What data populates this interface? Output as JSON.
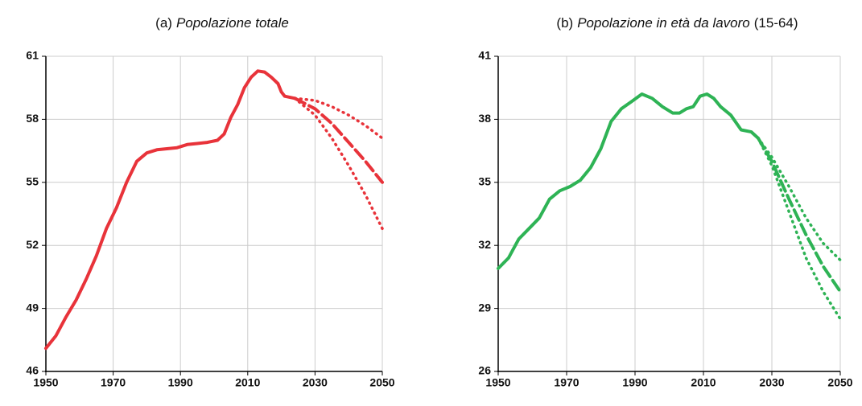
{
  "chart_data": [
    {
      "type": "line",
      "title": [
        "(a)",
        "Popolazione totale"
      ],
      "color": "#e8333a",
      "xlim": [
        1950,
        2050
      ],
      "xticks": [
        1950,
        1970,
        1990,
        2010,
        2030,
        2050
      ],
      "ylim": [
        46,
        61
      ],
      "yticks": [
        46,
        49,
        52,
        55,
        58,
        61
      ],
      "grid": true,
      "series": [
        {
          "style": "solid",
          "x": [
            1950,
            1953,
            1956,
            1959,
            1962,
            1965,
            1968,
            1971,
            1974,
            1977,
            1980,
            1983,
            1986,
            1989,
            1992,
            1995,
            1998,
            2001,
            2003,
            2005,
            2007,
            2009,
            2011,
            2013,
            2015,
            2017,
            2019,
            2020,
            2021,
            2024
          ],
          "values": [
            47.1,
            47.7,
            48.6,
            49.4,
            50.4,
            51.5,
            52.8,
            53.8,
            55.0,
            56.0,
            56.4,
            56.55,
            56.6,
            56.65,
            56.8,
            56.85,
            56.9,
            57.0,
            57.3,
            58.1,
            58.7,
            59.5,
            60.0,
            60.3,
            60.25,
            60.0,
            59.7,
            59.3,
            59.1,
            59.0
          ]
        },
        {
          "style": "dashed",
          "x": [
            2024,
            2030,
            2035,
            2040,
            2045,
            2050
          ],
          "values": [
            59.0,
            58.5,
            57.8,
            56.9,
            56.0,
            55.0
          ]
        },
        {
          "style": "dotted",
          "x": [
            2024,
            2030,
            2035,
            2040,
            2045,
            2050
          ],
          "values": [
            59.0,
            58.9,
            58.6,
            58.2,
            57.7,
            57.1
          ]
        },
        {
          "style": "dotted",
          "x": [
            2024,
            2030,
            2035,
            2040,
            2045,
            2050
          ],
          "values": [
            59.0,
            58.2,
            57.1,
            55.8,
            54.4,
            52.8
          ]
        }
      ]
    },
    {
      "type": "line",
      "title": [
        "(b)",
        "Popolazione in età da lavoro",
        "(15-64)"
      ],
      "color": "#2eb355",
      "xlim": [
        1950,
        2050
      ],
      "xticks": [
        1950,
        1970,
        1990,
        2010,
        2030,
        2050
      ],
      "ylim": [
        26,
        41
      ],
      "yticks": [
        26,
        29,
        32,
        35,
        38,
        41
      ],
      "grid": true,
      "series": [
        {
          "style": "solid",
          "x": [
            1950,
            1953,
            1956,
            1959,
            1962,
            1965,
            1968,
            1971,
            1974,
            1977,
            1980,
            1983,
            1986,
            1989,
            1992,
            1995,
            1998,
            2001,
            2003,
            2005,
            2007,
            2009,
            2011,
            2013,
            2015,
            2018,
            2021,
            2024,
            2026
          ],
          "values": [
            30.9,
            31.4,
            32.3,
            32.8,
            33.3,
            34.2,
            34.6,
            34.8,
            35.1,
            35.7,
            36.6,
            37.9,
            38.5,
            38.85,
            39.2,
            39.0,
            38.6,
            38.3,
            38.3,
            38.5,
            38.6,
            39.1,
            39.2,
            39.0,
            38.6,
            38.2,
            37.5,
            37.4,
            37.1
          ]
        },
        {
          "style": "dashed",
          "x": [
            2026,
            2030,
            2035,
            2040,
            2045,
            2050
          ],
          "values": [
            37.1,
            36.0,
            34.2,
            32.5,
            31.0,
            29.8
          ]
        },
        {
          "style": "dotted",
          "x": [
            2026,
            2030,
            2035,
            2040,
            2045,
            2050
          ],
          "values": [
            37.1,
            36.2,
            34.8,
            33.3,
            32.1,
            31.3
          ]
        },
        {
          "style": "dotted",
          "x": [
            2026,
            2030,
            2035,
            2040,
            2045,
            2050
          ],
          "values": [
            37.1,
            35.8,
            33.6,
            31.4,
            29.8,
            28.5
          ]
        }
      ]
    }
  ]
}
